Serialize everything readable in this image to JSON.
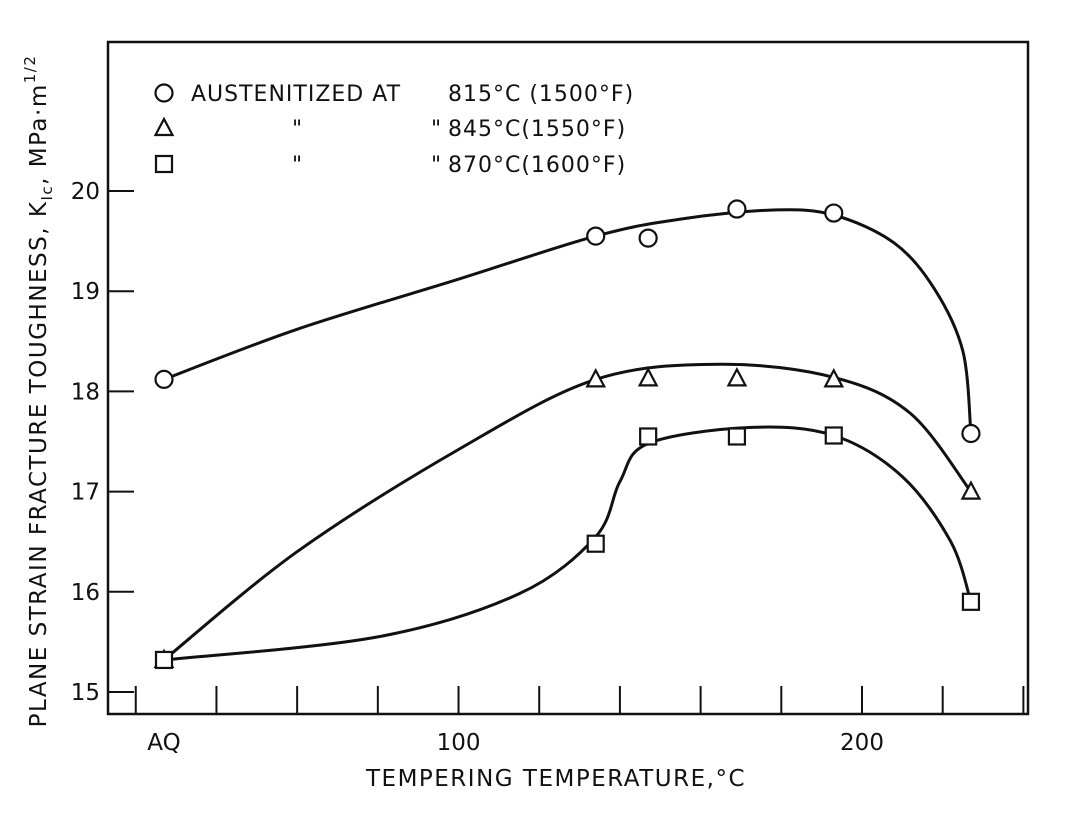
{
  "chart_data": {
    "type": "line",
    "title": "",
    "xlabel": "TEMPERING TEMPERATURE,°C",
    "ylabel": "PLANE STRAIN FRACTURE TOUGHNESS, K",
    "ylabel_subscript": "Ic",
    "ylabel_units": ", MPa·m",
    "ylabel_superscript": "1/2",
    "xlim": [
      13,
      243
    ],
    "ylim": [
      14.75,
      21.5
    ],
    "x_ticks": [
      {
        "value": 20,
        "label": ""
      },
      {
        "value": 40,
        "label": ""
      },
      {
        "value": 60,
        "label": ""
      },
      {
        "value": 80,
        "label": ""
      },
      {
        "value": 100,
        "label": ""
      },
      {
        "value": 120,
        "label": ""
      },
      {
        "value": 140,
        "label": ""
      },
      {
        "value": 160,
        "label": ""
      },
      {
        "value": 180,
        "label": ""
      },
      {
        "value": 200,
        "label": ""
      },
      {
        "value": 220,
        "label": ""
      },
      {
        "value": 240,
        "label": ""
      }
    ],
    "x_tick_labels": [
      {
        "value": 27,
        "label": "AQ"
      },
      {
        "value": 100,
        "label": "100"
      },
      {
        "value": 200,
        "label": "200"
      }
    ],
    "y_ticks": [
      15,
      16,
      17,
      18,
      19,
      20
    ],
    "y_tick_labels": [
      "15",
      "16",
      "17",
      "18",
      "19",
      "20"
    ],
    "legend": {
      "position": "top-left",
      "entries": [
        {
          "marker": "circle",
          "prefix": "AUSTENITIZED AT",
          "temp": "815°C (1500°F)"
        },
        {
          "marker": "triangle",
          "prefix": "\"                \"",
          "temp": "845°C(1550°F)"
        },
        {
          "marker": "square",
          "prefix": "\"                \"",
          "temp": "870°C(1600°F)"
        }
      ]
    },
    "series": [
      {
        "name": "815°C (1500°F)",
        "marker": "circle",
        "points": [
          [
            27,
            18.12
          ],
          [
            134,
            19.55
          ],
          [
            147,
            19.53
          ],
          [
            169,
            19.82
          ],
          [
            193,
            19.78
          ],
          [
            227,
            17.58
          ]
        ],
        "curve": [
          [
            27,
            18.12
          ],
          [
            60,
            18.62
          ],
          [
            100,
            19.12
          ],
          [
            134,
            19.55
          ],
          [
            155,
            19.72
          ],
          [
            178,
            19.81
          ],
          [
            193,
            19.76
          ],
          [
            208,
            19.48
          ],
          [
            218,
            19.02
          ],
          [
            225,
            18.4
          ],
          [
            227,
            17.58
          ]
        ]
      },
      {
        "name": "845°C (1550°F)",
        "marker": "triangle",
        "points": [
          [
            27,
            15.32
          ],
          [
            134,
            18.12
          ],
          [
            147,
            18.13
          ],
          [
            169,
            18.13
          ],
          [
            193,
            18.12
          ],
          [
            227,
            17.0
          ]
        ],
        "curve": [
          [
            27,
            15.32
          ],
          [
            60,
            16.4
          ],
          [
            100,
            17.42
          ],
          [
            134,
            18.12
          ],
          [
            165,
            18.27
          ],
          [
            193,
            18.14
          ],
          [
            212,
            17.78
          ],
          [
            227,
            17.0
          ]
        ]
      },
      {
        "name": "870°C (1600°F)",
        "marker": "square",
        "points": [
          [
            27,
            15.32
          ],
          [
            134,
            16.48
          ],
          [
            147,
            17.55
          ],
          [
            169,
            17.55
          ],
          [
            193,
            17.56
          ],
          [
            227,
            15.9
          ]
        ],
        "curve": [
          [
            27,
            15.32
          ],
          [
            80,
            15.55
          ],
          [
            115,
            15.98
          ],
          [
            134,
            16.55
          ],
          [
            140,
            17.1
          ],
          [
            147,
            17.48
          ],
          [
            172,
            17.64
          ],
          [
            193,
            17.56
          ],
          [
            210,
            17.15
          ],
          [
            222,
            16.5
          ],
          [
            227,
            15.9
          ]
        ]
      }
    ]
  }
}
